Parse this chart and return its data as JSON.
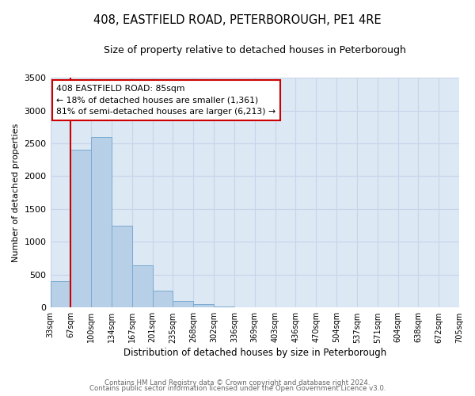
{
  "title": "408, EASTFIELD ROAD, PETERBOROUGH, PE1 4RE",
  "subtitle": "Size of property relative to detached houses in Peterborough",
  "xlabel": "Distribution of detached houses by size in Peterborough",
  "ylabel": "Number of detached properties",
  "footnote1": "Contains HM Land Registry data © Crown copyright and database right 2024.",
  "footnote2": "Contains public sector information licensed under the Open Government Licence v3.0.",
  "bin_labels": [
    "33sqm",
    "67sqm",
    "100sqm",
    "134sqm",
    "167sqm",
    "201sqm",
    "235sqm",
    "268sqm",
    "302sqm",
    "336sqm",
    "369sqm",
    "403sqm",
    "436sqm",
    "470sqm",
    "504sqm",
    "537sqm",
    "571sqm",
    "604sqm",
    "638sqm",
    "672sqm",
    "705sqm"
  ],
  "bar_values": [
    400,
    2400,
    2600,
    1250,
    640,
    260,
    100,
    50,
    20,
    5,
    0,
    0,
    0,
    0,
    0,
    0,
    0,
    0,
    0,
    0
  ],
  "bar_color": "#b8cfe8",
  "bar_edge_color": "#7aaad0",
  "vline_x": 1.0,
  "vline_color": "#cc0000",
  "ylim": [
    0,
    3500
  ],
  "yticks": [
    0,
    500,
    1000,
    1500,
    2000,
    2500,
    3000,
    3500
  ],
  "annotation_title": "408 EASTFIELD ROAD: 85sqm",
  "annotation_line1": "← 18% of detached houses are smaller (1,361)",
  "annotation_line2": "81% of semi-detached houses are larger (6,213) →",
  "annotation_box_edgecolor": "#cc0000",
  "grid_color": "#c8d4e8",
  "background_color": "#dce8f4"
}
